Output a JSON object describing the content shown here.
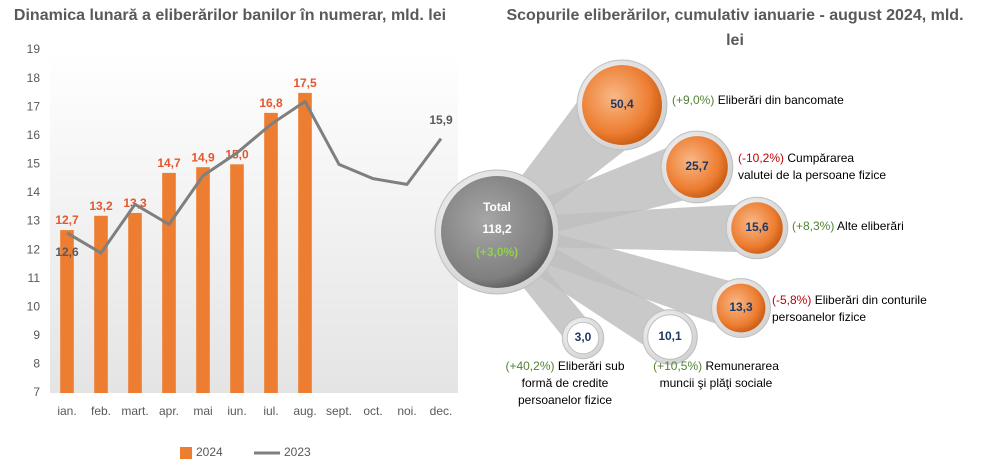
{
  "chart_data": [
    {
      "type": "bar-line",
      "title": "Dinamica lunară a eliberărilor banilor în numerar, mld. lei",
      "categories": [
        "ian.",
        "feb.",
        "mart.",
        "apr.",
        "mai",
        "iun.",
        "iul.",
        "aug.",
        "sept.",
        "oct.",
        "noi.",
        "dec."
      ],
      "series": [
        {
          "name": "2024",
          "type": "bar",
          "color": "#ed7d31",
          "values": [
            12.7,
            13.2,
            13.3,
            14.7,
            14.9,
            15.0,
            16.8,
            17.5,
            null,
            null,
            null,
            null
          ],
          "value_labels": [
            "12,7",
            "13,2",
            "13,3",
            "14,7",
            "14,9",
            "15,0",
            "16,8",
            "17,5",
            null,
            null,
            null,
            null
          ]
        },
        {
          "name": "2023",
          "type": "line",
          "color": "#7f7f7f",
          "values": [
            12.6,
            11.9,
            13.6,
            12.9,
            14.6,
            15.4,
            16.4,
            17.2,
            15.0,
            14.5,
            14.3,
            15.9
          ],
          "value_labels": [
            "12,6",
            null,
            null,
            null,
            null,
            null,
            null,
            null,
            null,
            null,
            null,
            "15,9"
          ]
        }
      ],
      "ylim": [
        7,
        19
      ],
      "yticks": [
        7,
        8,
        9,
        10,
        11,
        12,
        13,
        14,
        15,
        16,
        17,
        18,
        19
      ],
      "grid": false,
      "legend": "bottom"
    },
    {
      "type": "bubble-breakdown",
      "title": "Scopurile eliberărilor, cumulativ ianuarie - august 2024, mld. lei",
      "total": {
        "label": "Total",
        "value": 118.2,
        "value_label": "118,2",
        "change": 3.0,
        "change_label": "(+3,0%)"
      },
      "color": "#ed7d31",
      "items": [
        {
          "name": "Eliberări din bancomate",
          "value": 50.4,
          "value_label": "50,4",
          "change": 9.0,
          "change_label": "(+9,0%)"
        },
        {
          "name": "Cumpărarea valutei de la persoane fizice",
          "value": 25.7,
          "value_label": "25,7",
          "change": -10.2,
          "change_label": "(-10,2%)"
        },
        {
          "name": "Alte eliberări",
          "value": 15.6,
          "value_label": "15,6",
          "change": 8.3,
          "change_label": "(+8,3%)"
        },
        {
          "name": "Eliberări din conturile persoanelor fizice",
          "value": 13.3,
          "value_label": "13,3",
          "change": -5.8,
          "change_label": "(-5,8%)"
        },
        {
          "name": "Remunerarea muncii şi plăţi sociale",
          "value": 10.1,
          "value_label": "10,1",
          "change": 10.5,
          "change_label": "(+10,5%)"
        },
        {
          "name": "Eliberări sub formă de credite persoanelor fizice",
          "value": 3.0,
          "value_label": "3,0",
          "change": 40.2,
          "change_label": "(+40,2%)"
        }
      ]
    }
  ]
}
